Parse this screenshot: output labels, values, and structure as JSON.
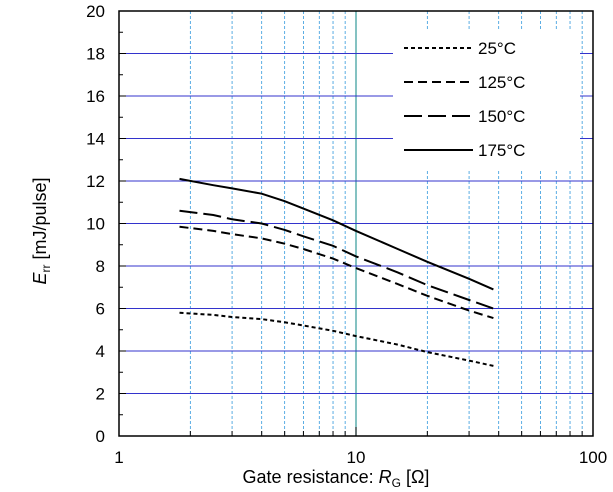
{
  "chart_data": {
    "type": "line",
    "xscale": "log",
    "xlim": [
      1,
      100
    ],
    "ylim": [
      0,
      20
    ],
    "xticks": [
      "1",
      "10",
      "100"
    ],
    "yticks": [
      "0",
      "2",
      "4",
      "6",
      "8",
      "10",
      "12",
      "14",
      "16",
      "18",
      "20"
    ],
    "ylabel": {
      "main": "E",
      "sub": "rr",
      "rest": " [mJ/pulse]"
    },
    "xlabel": {
      "main": "Gate resistance: ",
      "var": "R",
      "sub": "G",
      "rest": " [Ω]"
    },
    "grid": true,
    "legend_position": "top-right",
    "colors": {
      "major_grid": "#3333cc",
      "minor_grid": "#3399dd",
      "decade_line": "#339999",
      "series": "#000000"
    },
    "series": [
      {
        "name": "25°C",
        "dash": "4,3",
        "x": [
          1.8,
          2.5,
          3,
          4,
          5,
          6,
          8,
          10,
          15,
          20,
          30,
          38
        ],
        "y": [
          5.8,
          5.7,
          5.6,
          5.5,
          5.35,
          5.2,
          4.95,
          4.7,
          4.3,
          3.95,
          3.55,
          3.3
        ]
      },
      {
        "name": "125°C",
        "dash": "9,5",
        "x": [
          1.8,
          2.5,
          3,
          4,
          5,
          6,
          8,
          10,
          15,
          20,
          30,
          38
        ],
        "y": [
          9.85,
          9.65,
          9.5,
          9.3,
          9.05,
          8.8,
          8.35,
          7.9,
          7.15,
          6.6,
          5.9,
          5.55
        ]
      },
      {
        "name": "150°C",
        "dash": "18,6",
        "x": [
          1.8,
          2.5,
          3,
          4,
          5,
          6,
          8,
          10,
          15,
          20,
          30,
          38
        ],
        "y": [
          10.6,
          10.4,
          10.2,
          10.0,
          9.7,
          9.4,
          8.95,
          8.45,
          7.7,
          7.1,
          6.4,
          6.0
        ]
      },
      {
        "name": "175°C",
        "dash": "",
        "x": [
          1.8,
          2.5,
          3,
          4,
          5,
          6,
          8,
          10,
          15,
          20,
          30,
          38
        ],
        "y": [
          12.1,
          11.8,
          11.65,
          11.4,
          11.05,
          10.7,
          10.15,
          9.65,
          8.8,
          8.2,
          7.4,
          6.9
        ]
      }
    ]
  }
}
